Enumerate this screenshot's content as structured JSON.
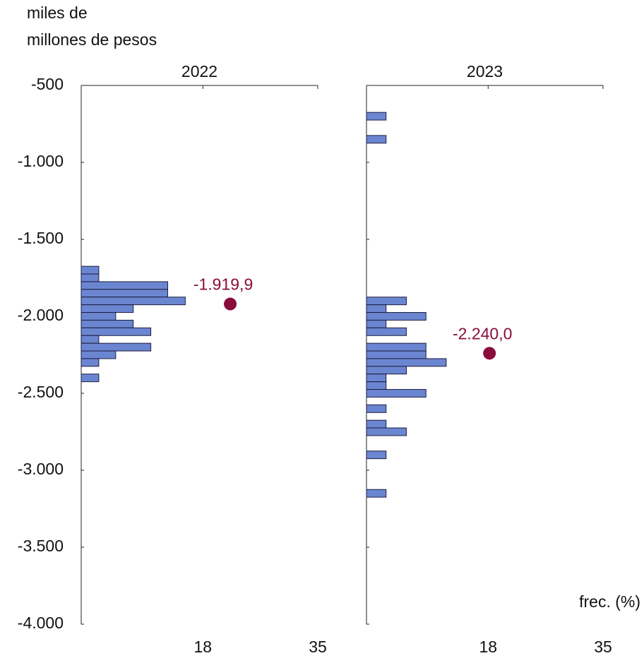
{
  "y_label": [
    "miles de",
    "millones de pesos"
  ],
  "x_label": "frec. (%)",
  "chart_data": [
    {
      "type": "histogram",
      "title": "2022",
      "color": "#6b86d1",
      "edge_color": "#1c1c40",
      "bins": [
        -1675,
        -1725,
        -1775,
        -1825,
        -1875,
        -1925,
        -1975,
        -2025,
        -2075,
        -2125,
        -2175,
        -2225,
        -2275,
        -2325,
        -2375,
        -2425
      ],
      "values": [
        2.6,
        2.6,
        12.8,
        12.8,
        15.4,
        7.7,
        5.1,
        7.7,
        10.3,
        2.6,
        10.3,
        5.1,
        2.6,
        0,
        2.6
      ],
      "ylim": [
        -4000,
        -500
      ],
      "yticks": [
        -500,
        {
          "value": -1000,
          "label": "-1.000"
        },
        {
          "value": -1500,
          "label": "-1.500"
        },
        {
          "value": -2000,
          "label": "-2.000"
        },
        {
          "value": -2500,
          "label": "-2.500"
        },
        {
          "value": -3000,
          "label": "-3.000"
        },
        {
          "value": -3500,
          "label": "-3.500"
        },
        {
          "value": -4000,
          "label": "-4.000"
        }
      ],
      "xlim": [
        0,
        35
      ],
      "xticks": [
        18,
        35
      ],
      "mean": {
        "value": -1919.9,
        "label": "-1.919,9",
        "color": "#8a0c3c"
      }
    },
    {
      "type": "histogram",
      "title": "2023",
      "color": "#6b86d1",
      "edge_color": "#1c1c40",
      "bins": [
        -675,
        -725,
        -775,
        -825,
        -875,
        -925,
        -975,
        -1025,
        -1075,
        -1125,
        -1175,
        -1225,
        -1275,
        -1325,
        -1375,
        -1425,
        -1475,
        -1525,
        -1575,
        -1625,
        -1675,
        -1725,
        -1775,
        -1825,
        -1875,
        -1925,
        -1975,
        -2025,
        -2075,
        -2125,
        -2175,
        -2225,
        -2275,
        -2325,
        -2375,
        -2425,
        -2475,
        -2525,
        -2575,
        -2625,
        -2675,
        -2725,
        -2775,
        -2825,
        -2875,
        -2925,
        -2975,
        -3025,
        -3075,
        -3125,
        -3175
      ],
      "values": [
        2.9,
        0,
        0,
        2.9,
        0,
        0,
        0,
        0,
        0,
        0,
        0,
        0,
        0,
        0,
        0,
        0,
        0,
        0,
        0,
        0,
        0,
        0,
        0,
        0,
        5.9,
        2.9,
        8.8,
        2.9,
        5.9,
        0,
        8.8,
        8.8,
        11.8,
        5.9,
        2.9,
        2.9,
        8.8,
        0,
        2.9,
        0,
        2.9,
        5.9,
        0,
        0,
        2.9,
        0,
        0,
        0,
        0,
        2.9
      ],
      "ylim": [
        -4000,
        -500
      ],
      "xlim": [
        0,
        35
      ],
      "xticks": [
        18,
        35
      ],
      "mean": {
        "value": -2240.0,
        "label": "-2.240,0",
        "color": "#8a0c3c"
      }
    }
  ]
}
